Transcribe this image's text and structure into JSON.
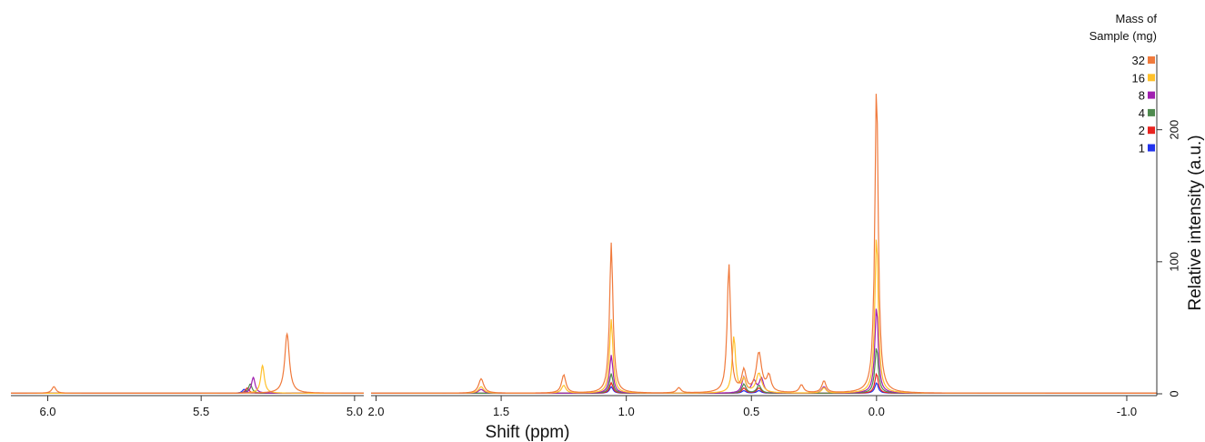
{
  "chart_data": {
    "type": "line",
    "xlabel": "Shift (ppm)",
    "ylabel": "Relative intensity (a.u.)",
    "ylim": [
      0,
      235
    ],
    "x_reversed": true,
    "panels": [
      {
        "xlim": [
          6.12,
          4.97
        ],
        "xticks": [
          6.0,
          5.5,
          5.0
        ]
      },
      {
        "xlim": [
          2.02,
          -1.12
        ],
        "xticks": [
          2.0,
          1.5,
          1.0,
          0.5,
          0.0,
          -1.0
        ]
      }
    ],
    "yticks": [
      0,
      100,
      200
    ],
    "legend_title": "Mass of Sample (mg)",
    "legend_title_lines": [
      "Mass of",
      "Sample (mg)"
    ],
    "legend_position": "top-right",
    "series": [
      {
        "name": "32",
        "color": "#f07a3c",
        "peaks": [
          [
            5.98,
            5,
            0.008
          ],
          [
            5.22,
            45,
            0.009
          ],
          [
            1.58,
            11,
            0.012
          ],
          [
            1.25,
            14,
            0.01
          ],
          [
            1.06,
            114,
            0.008
          ],
          [
            0.79,
            4,
            0.01
          ],
          [
            0.59,
            98,
            0.008
          ],
          [
            0.53,
            16,
            0.01
          ],
          [
            0.47,
            30,
            0.013
          ],
          [
            0.43,
            12,
            0.01
          ],
          [
            0.3,
            6,
            0.01
          ],
          [
            0.21,
            9,
            0.01
          ],
          [
            0.0,
            234,
            0.008
          ]
        ]
      },
      {
        "name": "16",
        "color": "#ffc12b",
        "peaks": [
          [
            5.3,
            21,
            0.007
          ],
          [
            1.58,
            5,
            0.012
          ],
          [
            1.25,
            6,
            0.01
          ],
          [
            1.06,
            56,
            0.008
          ],
          [
            0.57,
            43,
            0.008
          ],
          [
            0.53,
            10,
            0.01
          ],
          [
            0.47,
            15,
            0.013
          ],
          [
            0.21,
            4,
            0.01
          ],
          [
            0.0,
            120,
            0.008
          ]
        ]
      },
      {
        "name": "8",
        "color": "#a020b0",
        "peaks": [
          [
            5.33,
            12,
            0.007
          ],
          [
            1.58,
            3,
            0.012
          ],
          [
            1.06,
            29,
            0.008
          ],
          [
            0.53,
            12,
            0.009
          ],
          [
            0.49,
            9,
            0.01
          ],
          [
            0.46,
            11,
            0.01
          ],
          [
            0.21,
            5,
            0.01
          ],
          [
            0.0,
            66,
            0.008
          ]
        ]
      },
      {
        "name": "4",
        "color": "#4e8a4e",
        "peaks": [
          [
            5.34,
            7,
            0.007
          ],
          [
            1.06,
            15,
            0.008
          ],
          [
            0.53,
            7,
            0.009
          ],
          [
            0.47,
            6,
            0.01
          ],
          [
            0.0,
            35,
            0.008
          ]
        ]
      },
      {
        "name": "2",
        "color": "#e8231f",
        "peaks": [
          [
            5.35,
            4,
            0.007
          ],
          [
            1.06,
            8,
            0.008
          ],
          [
            0.53,
            4,
            0.009
          ],
          [
            0.47,
            4,
            0.01
          ],
          [
            0.0,
            15,
            0.008
          ]
        ]
      },
      {
        "name": "1",
        "color": "#2233ee",
        "peaks": [
          [
            5.36,
            3,
            0.007
          ],
          [
            1.06,
            5,
            0.008
          ],
          [
            0.53,
            2,
            0.009
          ],
          [
            0.47,
            2,
            0.01
          ],
          [
            0.0,
            8,
            0.008
          ]
        ]
      }
    ]
  }
}
